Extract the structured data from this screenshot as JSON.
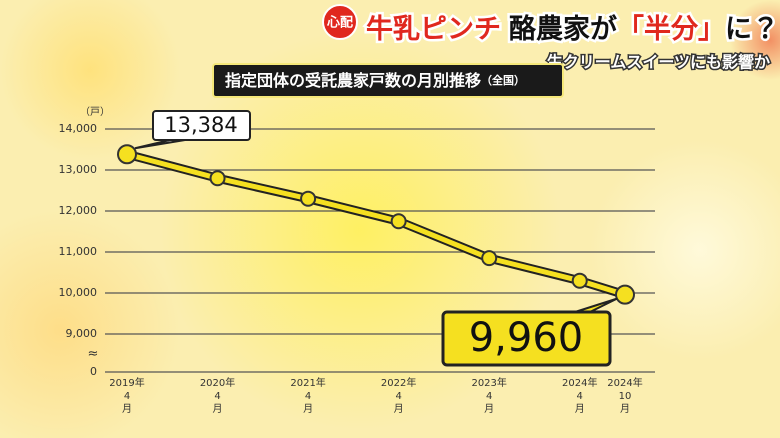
{
  "headline": {
    "badge": "心配",
    "title_parts": [
      "牛乳ピンチ",
      "酪農家が",
      "「半分」",
      "に？"
    ],
    "subtitle": "生クリームスイーツにも影響か"
  },
  "chart_data": {
    "type": "line",
    "title": "指定団体の受託農家戸数の月別推移",
    "title_note": "（全国）",
    "y_unit": "（戸）",
    "axis_break_label": "≈",
    "categories": [
      [
        "2019年",
        "4",
        "月"
      ],
      [
        "2020年",
        "4",
        "月"
      ],
      [
        "2021年",
        "4",
        "月"
      ],
      [
        "2022年",
        "4",
        "月"
      ],
      [
        "2023年",
        "4",
        "月"
      ],
      [
        "2024年",
        "4",
        "月"
      ],
      [
        "2024年",
        "10",
        "月"
      ]
    ],
    "series": [
      {
        "name": "受託農家戸数",
        "color": "#f5e020",
        "values": [
          13384,
          12800,
          12300,
          11750,
          10850,
          10300,
          9960
        ],
        "value_labels": [
          "13,384",
          null,
          null,
          null,
          null,
          null,
          "9,960"
        ]
      }
    ],
    "ylim": [
      9000,
      14000
    ],
    "yticks": [
      {
        "value": 14000,
        "label": "14,000"
      },
      {
        "value": 13000,
        "label": "13,000"
      },
      {
        "value": 12000,
        "label": "12,000"
      },
      {
        "value": 11000,
        "label": "11,000"
      },
      {
        "value": 10000,
        "label": "10,000"
      },
      {
        "value": 9000,
        "label": "9,000"
      },
      0
    ],
    "grid": true
  }
}
